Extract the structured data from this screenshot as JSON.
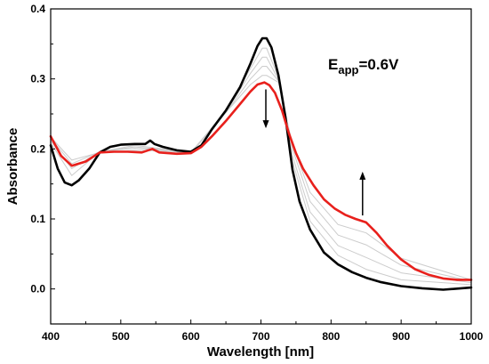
{
  "chart_data": {
    "type": "line",
    "xlabel": "Wavelength [nm]",
    "ylabel": "Absorbance",
    "xlim": [
      400,
      1000
    ],
    "ylim": [
      -0.05,
      0.4
    ],
    "x_ticks": [
      "400",
      "500",
      "600",
      "700",
      "800",
      "900",
      "1000"
    ],
    "y_ticks": [
      "0.0",
      "0.1",
      "0.2",
      "0.3",
      "0.4"
    ],
    "annotation": {
      "main": "E",
      "sub": "app",
      "tail": "=0.6V"
    },
    "arrows": [
      {
        "direction": "down",
        "x": 707,
        "from": 0.285,
        "to": 0.232
      },
      {
        "direction": "up",
        "x": 845,
        "from": 0.105,
        "to": 0.165
      }
    ],
    "series": [
      {
        "color": "#000000",
        "role": "initial",
        "points": [
          [
            400,
            0.205
          ],
          [
            410,
            0.172
          ],
          [
            420,
            0.152
          ],
          [
            430,
            0.148
          ],
          [
            440,
            0.155
          ],
          [
            455,
            0.172
          ],
          [
            470,
            0.195
          ],
          [
            485,
            0.203
          ],
          [
            500,
            0.206
          ],
          [
            520,
            0.207
          ],
          [
            535,
            0.207
          ],
          [
            542,
            0.212
          ],
          [
            548,
            0.207
          ],
          [
            560,
            0.203
          ],
          [
            580,
            0.198
          ],
          [
            600,
            0.196
          ],
          [
            615,
            0.205
          ],
          [
            630,
            0.228
          ],
          [
            650,
            0.255
          ],
          [
            670,
            0.288
          ],
          [
            685,
            0.322
          ],
          [
            695,
            0.347
          ],
          [
            702,
            0.358
          ],
          [
            708,
            0.358
          ],
          [
            715,
            0.345
          ],
          [
            725,
            0.305
          ],
          [
            735,
            0.245
          ],
          [
            745,
            0.17
          ],
          [
            755,
            0.125
          ],
          [
            770,
            0.085
          ],
          [
            790,
            0.052
          ],
          [
            810,
            0.035
          ],
          [
            830,
            0.024
          ],
          [
            850,
            0.016
          ],
          [
            870,
            0.01
          ],
          [
            900,
            0.004
          ],
          [
            930,
            0.001
          ],
          [
            960,
            -0.001
          ],
          [
            1000,
            0.002
          ]
        ]
      },
      {
        "color": "#cccccc",
        "role": "intermediate",
        "points": [
          [
            400,
            0.209
          ],
          [
            430,
            0.162
          ],
          [
            470,
            0.196
          ],
          [
            520,
            0.205
          ],
          [
            560,
            0.2
          ],
          [
            600,
            0.195
          ],
          [
            650,
            0.254
          ],
          [
            685,
            0.315
          ],
          [
            702,
            0.344
          ],
          [
            708,
            0.344
          ],
          [
            725,
            0.302
          ],
          [
            745,
            0.182
          ],
          [
            770,
            0.097
          ],
          [
            810,
            0.048
          ],
          [
            850,
            0.028
          ],
          [
            900,
            0.013
          ],
          [
            1000,
            0.006
          ]
        ]
      },
      {
        "color": "#cccccc",
        "role": "intermediate",
        "points": [
          [
            400,
            0.212
          ],
          [
            430,
            0.172
          ],
          [
            470,
            0.196
          ],
          [
            520,
            0.203
          ],
          [
            560,
            0.199
          ],
          [
            600,
            0.195
          ],
          [
            650,
            0.253
          ],
          [
            685,
            0.308
          ],
          [
            702,
            0.331
          ],
          [
            708,
            0.331
          ],
          [
            725,
            0.299
          ],
          [
            745,
            0.19
          ],
          [
            770,
            0.11
          ],
          [
            810,
            0.062
          ],
          [
            850,
            0.045
          ],
          [
            900,
            0.023
          ],
          [
            1000,
            0.009
          ]
        ]
      },
      {
        "color": "#cccccc",
        "role": "intermediate",
        "points": [
          [
            400,
            0.215
          ],
          [
            430,
            0.179
          ],
          [
            470,
            0.196
          ],
          [
            520,
            0.201
          ],
          [
            560,
            0.198
          ],
          [
            600,
            0.194
          ],
          [
            650,
            0.252
          ],
          [
            685,
            0.3
          ],
          [
            702,
            0.318
          ],
          [
            708,
            0.318
          ],
          [
            725,
            0.297
          ],
          [
            745,
            0.2
          ],
          [
            770,
            0.125
          ],
          [
            810,
            0.077
          ],
          [
            850,
            0.063
          ],
          [
            900,
            0.034
          ],
          [
            1000,
            0.011
          ]
        ]
      },
      {
        "color": "#cccccc",
        "role": "intermediate",
        "points": [
          [
            400,
            0.217
          ],
          [
            430,
            0.184
          ],
          [
            470,
            0.195
          ],
          [
            520,
            0.198
          ],
          [
            560,
            0.197
          ],
          [
            600,
            0.194
          ],
          [
            650,
            0.252
          ],
          [
            685,
            0.292
          ],
          [
            702,
            0.305
          ],
          [
            708,
            0.305
          ],
          [
            725,
            0.295
          ],
          [
            745,
            0.206
          ],
          [
            770,
            0.138
          ],
          [
            810,
            0.092
          ],
          [
            850,
            0.08
          ],
          [
            900,
            0.044
          ],
          [
            1000,
            0.013
          ]
        ]
      },
      {
        "color": "#e8201c",
        "role": "final",
        "points": [
          [
            400,
            0.218
          ],
          [
            415,
            0.19
          ],
          [
            430,
            0.176
          ],
          [
            450,
            0.182
          ],
          [
            470,
            0.195
          ],
          [
            490,
            0.196
          ],
          [
            510,
            0.196
          ],
          [
            530,
            0.195
          ],
          [
            545,
            0.2
          ],
          [
            555,
            0.195
          ],
          [
            580,
            0.193
          ],
          [
            600,
            0.194
          ],
          [
            615,
            0.203
          ],
          [
            630,
            0.218
          ],
          [
            650,
            0.24
          ],
          [
            670,
            0.264
          ],
          [
            685,
            0.282
          ],
          [
            695,
            0.292
          ],
          [
            705,
            0.295
          ],
          [
            712,
            0.291
          ],
          [
            720,
            0.28
          ],
          [
            730,
            0.255
          ],
          [
            740,
            0.222
          ],
          [
            750,
            0.194
          ],
          [
            760,
            0.172
          ],
          [
            775,
            0.148
          ],
          [
            790,
            0.128
          ],
          [
            805,
            0.115
          ],
          [
            820,
            0.106
          ],
          [
            835,
            0.1
          ],
          [
            850,
            0.095
          ],
          [
            865,
            0.08
          ],
          [
            880,
            0.062
          ],
          [
            900,
            0.042
          ],
          [
            920,
            0.028
          ],
          [
            940,
            0.02
          ],
          [
            960,
            0.015
          ],
          [
            980,
            0.013
          ],
          [
            1000,
            0.013
          ]
        ]
      }
    ]
  }
}
